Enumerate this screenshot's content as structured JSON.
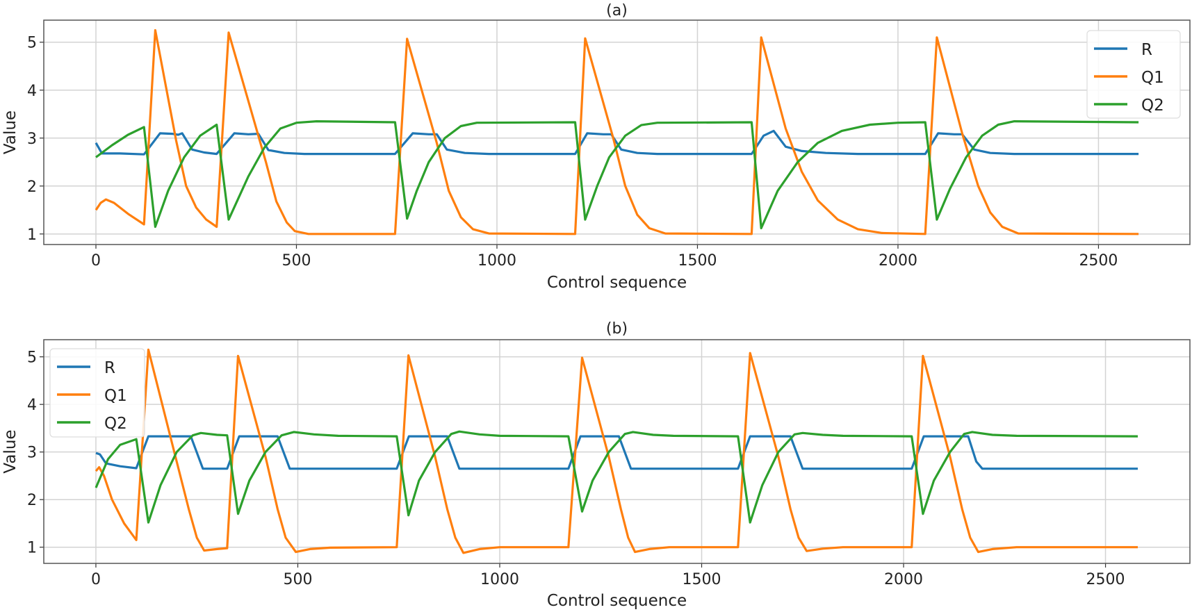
{
  "chart_data": [
    {
      "type": "line",
      "title": "(a)",
      "xlabel": "Control sequence",
      "ylabel": "Value",
      "xlim": [
        -130,
        2728
      ],
      "ylim": [
        0.78,
        5.46
      ],
      "xticks": [
        0,
        500,
        1000,
        1500,
        2000,
        2500
      ],
      "yticks": [
        1,
        2,
        3,
        4,
        5
      ],
      "grid": true,
      "legend_placement": "upper right",
      "series": [
        {
          "name": "R",
          "color": "#1f77b4",
          "points": [
            [
              0,
              2.9
            ],
            [
              15,
              2.68
            ],
            [
              60,
              2.68
            ],
            [
              120,
              2.66
            ],
            [
              160,
              3.1
            ],
            [
              190,
              3.09
            ],
            [
              205,
              3.07
            ],
            [
              215,
              3.1
            ],
            [
              240,
              2.76
            ],
            [
              270,
              2.7
            ],
            [
              301,
              2.67
            ],
            [
              345,
              3.1
            ],
            [
              380,
              3.08
            ],
            [
              405,
              3.09
            ],
            [
              430,
              2.75
            ],
            [
              470,
              2.69
            ],
            [
              520,
              2.67
            ],
            [
              746,
              2.67
            ],
            [
              790,
              3.1
            ],
            [
              830,
              3.08
            ],
            [
              850,
              3.08
            ],
            [
              875,
              2.76
            ],
            [
              920,
              2.69
            ],
            [
              980,
              2.67
            ],
            [
              1195,
              2.67
            ],
            [
              1225,
              3.1
            ],
            [
              1265,
              3.08
            ],
            [
              1285,
              3.08
            ],
            [
              1310,
              2.76
            ],
            [
              1350,
              2.69
            ],
            [
              1400,
              2.67
            ],
            [
              1635,
              2.67
            ],
            [
              1665,
              3.05
            ],
            [
              1690,
              3.15
            ],
            [
              1720,
              2.82
            ],
            [
              1760,
              2.73
            ],
            [
              1820,
              2.69
            ],
            [
              1900,
              2.67
            ],
            [
              2068,
              2.67
            ],
            [
              2100,
              3.1
            ],
            [
              2140,
              3.08
            ],
            [
              2160,
              3.08
            ],
            [
              2190,
              2.76
            ],
            [
              2230,
              2.69
            ],
            [
              2290,
              2.67
            ],
            [
              2600,
              2.67
            ]
          ]
        },
        {
          "name": "Q1",
          "color": "#ff7f0e",
          "points": [
            [
              0,
              1.5
            ],
            [
              12,
              1.65
            ],
            [
              25,
              1.72
            ],
            [
              45,
              1.65
            ],
            [
              80,
              1.42
            ],
            [
              120,
              1.2
            ],
            [
              148,
              5.25
            ],
            [
              200,
              2.95
            ],
            [
              225,
              2.0
            ],
            [
              250,
              1.55
            ],
            [
              275,
              1.3
            ],
            [
              301,
              1.15
            ],
            [
              331,
              5.2
            ],
            [
              424,
              2.5
            ],
            [
              450,
              1.68
            ],
            [
              476,
              1.24
            ],
            [
              496,
              1.06
            ],
            [
              530,
              1.0
            ],
            [
              746,
              1.0
            ],
            [
              776,
              5.07
            ],
            [
              850,
              2.9
            ],
            [
              880,
              1.9
            ],
            [
              910,
              1.35
            ],
            [
              940,
              1.1
            ],
            [
              980,
              1.01
            ],
            [
              1195,
              1.0
            ],
            [
              1220,
              5.08
            ],
            [
              1290,
              3.0
            ],
            [
              1320,
              2.0
            ],
            [
              1350,
              1.4
            ],
            [
              1380,
              1.12
            ],
            [
              1420,
              1.01
            ],
            [
              1635,
              1.0
            ],
            [
              1659,
              5.1
            ],
            [
              1720,
              3.2
            ],
            [
              1760,
              2.3
            ],
            [
              1800,
              1.7
            ],
            [
              1850,
              1.3
            ],
            [
              1900,
              1.1
            ],
            [
              1960,
              1.02
            ],
            [
              2068,
              1.0
            ],
            [
              2097,
              5.1
            ],
            [
              2160,
              3.1
            ],
            [
              2200,
              2.0
            ],
            [
              2230,
              1.45
            ],
            [
              2260,
              1.15
            ],
            [
              2300,
              1.01
            ],
            [
              2600,
              1.0
            ]
          ]
        },
        {
          "name": "Q2",
          "color": "#2ca02c",
          "points": [
            [
              0,
              2.6
            ],
            [
              40,
              2.85
            ],
            [
              80,
              3.07
            ],
            [
              120,
              3.23
            ],
            [
              148,
              1.15
            ],
            [
              180,
              1.9
            ],
            [
              220,
              2.6
            ],
            [
              260,
              3.05
            ],
            [
              301,
              3.28
            ],
            [
              331,
              1.3
            ],
            [
              380,
              2.2
            ],
            [
              420,
              2.8
            ],
            [
              460,
              3.2
            ],
            [
              500,
              3.32
            ],
            [
              550,
              3.35
            ],
            [
              746,
              3.33
            ],
            [
              776,
              1.32
            ],
            [
              800,
              1.9
            ],
            [
              830,
              2.5
            ],
            [
              870,
              3.0
            ],
            [
              910,
              3.25
            ],
            [
              950,
              3.32
            ],
            [
              1195,
              3.33
            ],
            [
              1220,
              1.3
            ],
            [
              1250,
              2.0
            ],
            [
              1280,
              2.6
            ],
            [
              1320,
              3.05
            ],
            [
              1360,
              3.27
            ],
            [
              1400,
              3.32
            ],
            [
              1635,
              3.33
            ],
            [
              1659,
              1.12
            ],
            [
              1700,
              1.9
            ],
            [
              1750,
              2.5
            ],
            [
              1800,
              2.9
            ],
            [
              1860,
              3.15
            ],
            [
              1930,
              3.28
            ],
            [
              2000,
              3.32
            ],
            [
              2068,
              3.33
            ],
            [
              2097,
              1.3
            ],
            [
              2130,
              1.95
            ],
            [
              2170,
              2.6
            ],
            [
              2210,
              3.05
            ],
            [
              2250,
              3.28
            ],
            [
              2290,
              3.35
            ],
            [
              2600,
              3.33
            ]
          ]
        }
      ]
    },
    {
      "type": "line",
      "title": "(b)",
      "xlabel": "Control sequence",
      "ylabel": "Value",
      "xlim": [
        -129,
        2709
      ],
      "ylim": [
        0.66,
        5.36
      ],
      "xticks": [
        0,
        500,
        1000,
        1500,
        2000,
        2500
      ],
      "yticks": [
        1,
        2,
        3,
        4,
        5
      ],
      "grid": true,
      "legend_placement": "upper left",
      "series": [
        {
          "name": "R",
          "color": "#1f77b4",
          "points": [
            [
              0,
              2.98
            ],
            [
              10,
              2.95
            ],
            [
              25,
              2.76
            ],
            [
              60,
              2.7
            ],
            [
              100,
              2.66
            ],
            [
              130,
              3.33
            ],
            [
              235,
              3.33
            ],
            [
              265,
              2.65
            ],
            [
              325,
              2.65
            ],
            [
              355,
              3.33
            ],
            [
              450,
              3.33
            ],
            [
              480,
              2.65
            ],
            [
              745,
              2.65
            ],
            [
              775,
              3.33
            ],
            [
              870,
              3.33
            ],
            [
              900,
              2.65
            ],
            [
              1170,
              2.65
            ],
            [
              1200,
              3.33
            ],
            [
              1295,
              3.33
            ],
            [
              1325,
              2.65
            ],
            [
              1590,
              2.65
            ],
            [
              1620,
              3.33
            ],
            [
              1720,
              3.33
            ],
            [
              1750,
              2.65
            ],
            [
              2020,
              2.65
            ],
            [
              2050,
              3.33
            ],
            [
              2160,
              3.33
            ],
            [
              2180,
              2.8
            ],
            [
              2195,
              2.65
            ],
            [
              2580,
              2.65
            ]
          ]
        },
        {
          "name": "Q1",
          "color": "#ff7f0e",
          "points": [
            [
              0,
              2.6
            ],
            [
              8,
              2.68
            ],
            [
              20,
              2.5
            ],
            [
              40,
              2.0
            ],
            [
              70,
              1.5
            ],
            [
              100,
              1.15
            ],
            [
              130,
              5.15
            ],
            [
              200,
              2.8
            ],
            [
              230,
              1.8
            ],
            [
              250,
              1.2
            ],
            [
              268,
              0.93
            ],
            [
              300,
              0.96
            ],
            [
              325,
              0.98
            ],
            [
              352,
              5.02
            ],
            [
              420,
              2.9
            ],
            [
              450,
              1.8
            ],
            [
              470,
              1.2
            ],
            [
              495,
              0.9
            ],
            [
              530,
              0.96
            ],
            [
              580,
              0.99
            ],
            [
              745,
              1.0
            ],
            [
              774,
              5.03
            ],
            [
              840,
              2.9
            ],
            [
              870,
              1.8
            ],
            [
              890,
              1.2
            ],
            [
              910,
              0.88
            ],
            [
              950,
              0.96
            ],
            [
              1000,
              1.0
            ],
            [
              1170,
              1.0
            ],
            [
              1204,
              4.98
            ],
            [
              1270,
              2.9
            ],
            [
              1300,
              1.8
            ],
            [
              1318,
              1.2
            ],
            [
              1335,
              0.9
            ],
            [
              1370,
              0.96
            ],
            [
              1420,
              1.0
            ],
            [
              1590,
              1.0
            ],
            [
              1620,
              5.08
            ],
            [
              1690,
              2.9
            ],
            [
              1720,
              1.8
            ],
            [
              1740,
              1.2
            ],
            [
              1760,
              0.92
            ],
            [
              1800,
              0.97
            ],
            [
              1850,
              1.0
            ],
            [
              2020,
              1.0
            ],
            [
              2048,
              5.02
            ],
            [
              2115,
              2.9
            ],
            [
              2145,
              1.8
            ],
            [
              2165,
              1.2
            ],
            [
              2185,
              0.9
            ],
            [
              2220,
              0.96
            ],
            [
              2280,
              1.0
            ],
            [
              2580,
              1.0
            ]
          ]
        },
        {
          "name": "Q2",
          "color": "#2ca02c",
          "points": [
            [
              0,
              2.25
            ],
            [
              30,
              2.85
            ],
            [
              60,
              3.15
            ],
            [
              100,
              3.27
            ],
            [
              130,
              1.52
            ],
            [
              160,
              2.3
            ],
            [
              200,
              3.0
            ],
            [
              240,
              3.35
            ],
            [
              260,
              3.4
            ],
            [
              300,
              3.36
            ],
            [
              325,
              3.35
            ],
            [
              352,
              1.7
            ],
            [
              380,
              2.4
            ],
            [
              420,
              3.0
            ],
            [
              460,
              3.35
            ],
            [
              490,
              3.42
            ],
            [
              540,
              3.37
            ],
            [
              600,
              3.34
            ],
            [
              745,
              3.33
            ],
            [
              774,
              1.67
            ],
            [
              800,
              2.4
            ],
            [
              840,
              3.0
            ],
            [
              880,
              3.38
            ],
            [
              900,
              3.43
            ],
            [
              950,
              3.37
            ],
            [
              1000,
              3.34
            ],
            [
              1170,
              3.33
            ],
            [
              1204,
              1.75
            ],
            [
              1230,
              2.4
            ],
            [
              1270,
              3.0
            ],
            [
              1310,
              3.38
            ],
            [
              1330,
              3.42
            ],
            [
              1380,
              3.36
            ],
            [
              1430,
              3.34
            ],
            [
              1590,
              3.33
            ],
            [
              1620,
              1.52
            ],
            [
              1650,
              2.3
            ],
            [
              1690,
              3.0
            ],
            [
              1730,
              3.37
            ],
            [
              1750,
              3.4
            ],
            [
              1800,
              3.36
            ],
            [
              1850,
              3.34
            ],
            [
              2020,
              3.33
            ],
            [
              2048,
              1.7
            ],
            [
              2075,
              2.4
            ],
            [
              2115,
              3.0
            ],
            [
              2150,
              3.38
            ],
            [
              2170,
              3.42
            ],
            [
              2220,
              3.36
            ],
            [
              2280,
              3.34
            ],
            [
              2580,
              3.33
            ]
          ]
        }
      ]
    }
  ]
}
